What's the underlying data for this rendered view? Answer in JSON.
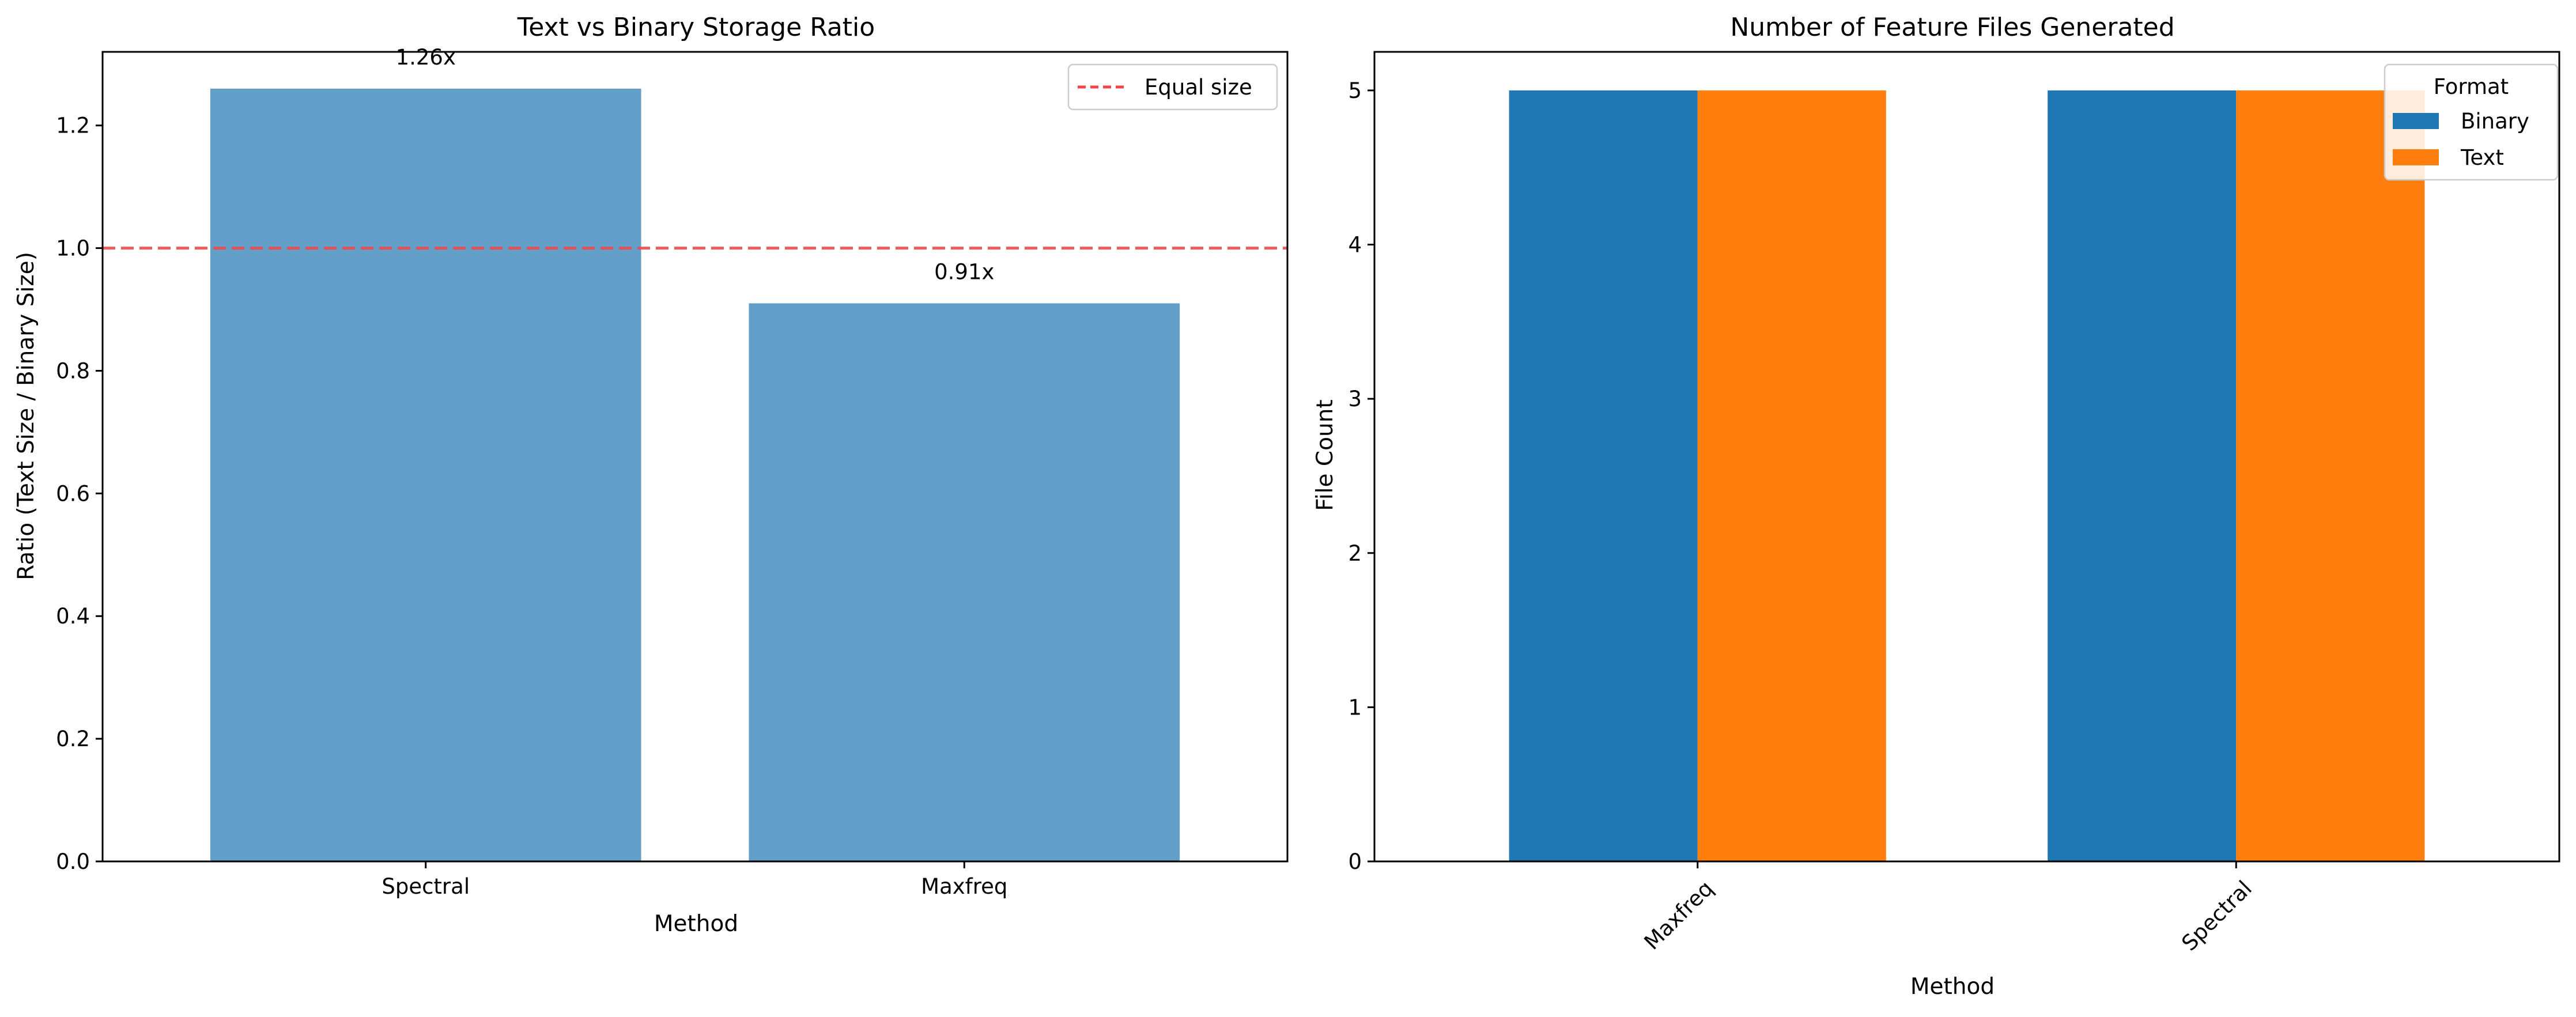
{
  "chart_data": [
    {
      "type": "bar",
      "title": "Text vs Binary Storage Ratio",
      "xlabel": "Method",
      "ylabel": "Ratio (Text Size / Binary Size)",
      "categories": [
        "Spectral",
        "Maxfreq"
      ],
      "values": [
        1.26,
        0.91
      ],
      "value_labels": [
        "1.26x",
        "0.91x"
      ],
      "ylim": [
        0,
        1.32
      ],
      "yticks": [
        "0.0",
        "0.2",
        "0.4",
        "0.6",
        "0.8",
        "1.0",
        "1.2"
      ],
      "bar_color": "#62a0ca",
      "reference_line": {
        "y": 1.0,
        "label": "Equal size",
        "color": "#f04848",
        "style": "dashed"
      },
      "legend": {
        "placement": "upper right",
        "entries": [
          "Equal size"
        ]
      },
      "grid": false
    },
    {
      "type": "bar",
      "title": "Number of Feature Files Generated",
      "xlabel": "Method",
      "ylabel": "File Count",
      "categories": [
        "Maxfreq",
        "Spectral"
      ],
      "series": [
        {
          "name": "Binary",
          "values": [
            5,
            5
          ],
          "color": "#1f77b4"
        },
        {
          "name": "Text",
          "values": [
            5,
            5
          ],
          "color": "#ff7f0e"
        }
      ],
      "ylim": [
        0,
        5.25
      ],
      "yticks": [
        "0",
        "1",
        "2",
        "3",
        "4",
        "5"
      ],
      "xtick_rotation": 45,
      "legend": {
        "title": "Format",
        "placement": "upper right",
        "entries": [
          "Binary",
          "Text"
        ]
      },
      "grid": false
    }
  ]
}
